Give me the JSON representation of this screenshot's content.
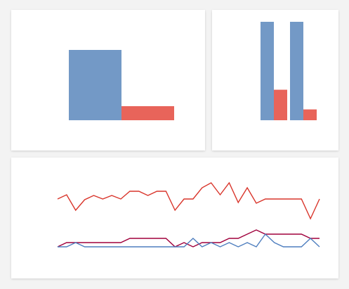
{
  "chart_data": [
    {
      "type": "bar",
      "categories": [
        null,
        null
      ],
      "series": [
        {
          "color": "#7399c6",
          "values": [
            100,
            null
          ]
        },
        {
          "color": "#e8645a",
          "values": [
            null,
            20
          ]
        }
      ],
      "ylim": [
        0,
        100
      ]
    },
    {
      "type": "bar",
      "categories": [
        null,
        null
      ],
      "series": [
        {
          "color": "#7399c6",
          "values": [
            100,
            100
          ]
        },
        {
          "color": "#e8645a",
          "values": [
            31,
            11
          ]
        }
      ],
      "ylim": [
        0,
        100
      ]
    },
    {
      "type": "line",
      "categories": [
        null,
        null,
        null,
        null,
        null,
        null,
        null,
        null,
        null,
        null,
        null,
        null,
        null,
        null,
        null,
        null,
        null,
        null,
        null,
        null,
        null,
        null,
        null,
        null,
        null,
        null,
        null,
        null,
        null,
        null
      ],
      "series": [
        {
          "color": "#d9352b",
          "values": [
            68,
            74,
            52,
            67,
            73,
            68,
            73,
            68,
            79,
            79,
            73,
            79,
            79,
            52,
            68,
            68,
            84,
            91,
            74,
            91,
            63,
            84,
            62,
            68,
            68,
            68,
            68,
            68,
            40,
            68
          ]
        },
        {
          "color": "#a0003c",
          "values": [
            0,
            6,
            6,
            6,
            6,
            6,
            6,
            6,
            12,
            12,
            12,
            12,
            12,
            0,
            6,
            0,
            6,
            6,
            6,
            12,
            12,
            18,
            24,
            18,
            18,
            18,
            18,
            18,
            12,
            12
          ]
        },
        {
          "color": "#4f7fbf",
          "values": [
            0,
            0,
            6,
            0,
            0,
            0,
            0,
            0,
            0,
            0,
            0,
            0,
            0,
            0,
            0,
            12,
            0,
            6,
            0,
            6,
            0,
            6,
            0,
            18,
            6,
            0,
            0,
            0,
            12,
            0
          ]
        }
      ],
      "ylim": [
        0,
        96
      ]
    }
  ]
}
